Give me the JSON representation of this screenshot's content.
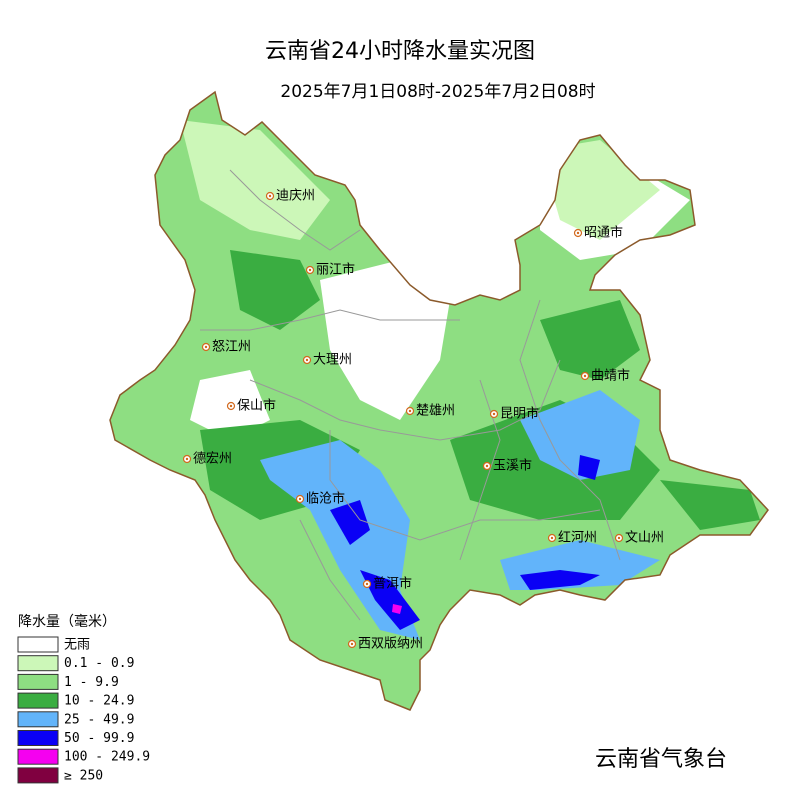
{
  "header": {
    "title": "云南省24小时降水量实况图",
    "subtitle": "2025年7月1日08时-2025年7月2日08时"
  },
  "cities": [
    "迪庆州",
    "丽江市",
    "昭通市",
    "怒江州",
    "大理州",
    "曲靖市",
    "保山市",
    "楚雄州",
    "昆明市",
    "德宏州",
    "玉溪市",
    "临沧市",
    "红河州",
    "文山州",
    "普洱市",
    "西双版纳州"
  ],
  "legend": {
    "title": "降水量（毫米）",
    "items": [
      {
        "label": "无雨",
        "color": "#ffffff"
      },
      {
        "label": "0.1 - 0.9",
        "color": "#ccf7b8"
      },
      {
        "label": "1 -  9.9",
        "color": "#8ede82"
      },
      {
        "label": "10 - 24.9",
        "color": "#3aad41"
      },
      {
        "label": "25 - 49.9",
        "color": "#62b4fa"
      },
      {
        "label": "50 - 99.9",
        "color": "#0a00f5"
      },
      {
        "label": "100 - 249.9",
        "color": "#f500f0"
      },
      {
        "label": "≥ 250",
        "color": "#800040"
      }
    ]
  },
  "footer": "云南省气象台"
}
